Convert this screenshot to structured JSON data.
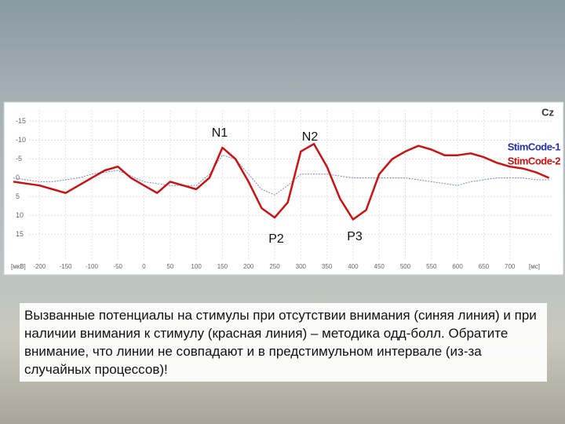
{
  "chart_data": {
    "type": "line",
    "channel": "Cz",
    "x": [
      -250,
      -225,
      -200,
      -175,
      -150,
      -125,
      -100,
      -75,
      -50,
      -25,
      0,
      25,
      50,
      75,
      100,
      125,
      150,
      175,
      200,
      225,
      250,
      275,
      300,
      325,
      350,
      375,
      400,
      425,
      450,
      475,
      500,
      525,
      550,
      575,
      600,
      625,
      650,
      675,
      700,
      725,
      750,
      775
    ],
    "series": [
      {
        "name": "StimCode-1",
        "color": "#2233aa",
        "values": [
          0,
          0.5,
          1,
          1,
          0.5,
          0,
          -1,
          -1.5,
          -2,
          -0.5,
          1,
          1.5,
          2,
          2,
          2,
          -1,
          -6,
          -5,
          -1,
          3,
          4.5,
          2,
          -1,
          -1,
          -1,
          -0.5,
          0,
          0,
          0,
          0,
          0,
          0.5,
          1,
          1.5,
          2,
          1,
          0.5,
          0,
          0,
          0,
          0.5,
          0.5
        ]
      },
      {
        "name": "StimCode-2",
        "color": "#cc1111",
        "values": [
          1,
          1.5,
          2,
          3,
          4,
          2,
          0,
          -2,
          -3,
          0,
          2,
          4,
          1,
          2,
          3,
          0,
          -8,
          -5,
          1,
          8,
          10.5,
          6.5,
          -7,
          -9,
          -3,
          5.5,
          11,
          8.5,
          -1,
          -5,
          -7,
          -8.5,
          -7.5,
          -6,
          -6,
          -6.5,
          -5.5,
          -4,
          -3,
          -2.5,
          -1.5,
          0
        ]
      }
    ],
    "xlim": [
      -250,
      780
    ],
    "ylim": [
      -18,
      21.5
    ],
    "y_reversed": true,
    "xticks": [
      -200,
      -150,
      -100,
      -50,
      0,
      50,
      100,
      150,
      200,
      250,
      300,
      350,
      400,
      450,
      500,
      550,
      600,
      650,
      700
    ],
    "yticks": [
      -15,
      -10,
      -5,
      0,
      5,
      10,
      15
    ],
    "x_unit": "[мс]",
    "y_unit": "[мкВ]",
    "grid": true,
    "annotations": [
      "N1",
      "N2",
      "P2",
      "P3"
    ]
  },
  "caption": "Вызванные потенциалы на стимулы при отсутствии внимания (синяя линия) и при наличии внимания к стимулу (красная линия) – методика одд-болл. Обратите внимание, что линии не совпадают и в предстимульном интервале (из-за случайных процессов)!"
}
